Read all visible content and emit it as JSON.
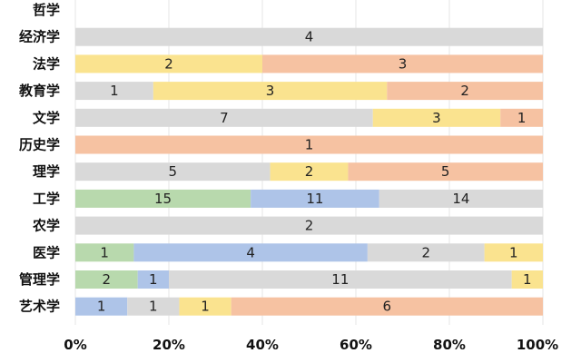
{
  "chart_data": {
    "type": "bar",
    "orientation": "horizontal",
    "stacked": true,
    "normalized": true,
    "categories": [
      "哲学",
      "经济学",
      "法学",
      "教育学",
      "文学",
      "历史学",
      "理学",
      "工学",
      "农学",
      "医学",
      "管理学",
      "艺术学"
    ],
    "segments": [
      [],
      [
        {
          "color": "#d9d9d9",
          "value": 4
        }
      ],
      [
        {
          "color": "#fae38f",
          "value": 2
        },
        {
          "color": "#f6c2a2",
          "value": 3
        }
      ],
      [
        {
          "color": "#d9d9d9",
          "value": 1
        },
        {
          "color": "#fae38f",
          "value": 3
        },
        {
          "color": "#f6c2a2",
          "value": 2
        }
      ],
      [
        {
          "color": "#d9d9d9",
          "value": 7
        },
        {
          "color": "#fae38f",
          "value": 3
        },
        {
          "color": "#f6c2a2",
          "value": 1
        }
      ],
      [
        {
          "color": "#f6c2a2",
          "value": 1
        }
      ],
      [
        {
          "color": "#d9d9d9",
          "value": 5
        },
        {
          "color": "#fae38f",
          "value": 2
        },
        {
          "color": "#f6c2a2",
          "value": 5
        }
      ],
      [
        {
          "color": "#b8d9ad",
          "value": 15
        },
        {
          "color": "#aec4e8",
          "value": 11
        },
        {
          "color": "#d9d9d9",
          "value": 14
        }
      ],
      [
        {
          "color": "#d9d9d9",
          "value": 2
        }
      ],
      [
        {
          "color": "#b8d9ad",
          "value": 1
        },
        {
          "color": "#aec4e8",
          "value": 4
        },
        {
          "color": "#d9d9d9",
          "value": 2
        },
        {
          "color": "#fae38f",
          "value": 1
        }
      ],
      [
        {
          "color": "#b8d9ad",
          "value": 2
        },
        {
          "color": "#aec4e8",
          "value": 1
        },
        {
          "color": "#d9d9d9",
          "value": 11
        },
        {
          "color": "#fae38f",
          "value": 1
        }
      ],
      [
        {
          "color": "#aec4e8",
          "value": 1
        },
        {
          "color": "#d9d9d9",
          "value": 1
        },
        {
          "color": "#fae38f",
          "value": 1
        },
        {
          "color": "#f6c2a2",
          "value": 6
        }
      ]
    ],
    "x_ticks": [
      "0%",
      "20%",
      "40%",
      "60%",
      "80%",
      "100%"
    ],
    "xlim": [
      0,
      100
    ],
    "grid": "vertical"
  }
}
